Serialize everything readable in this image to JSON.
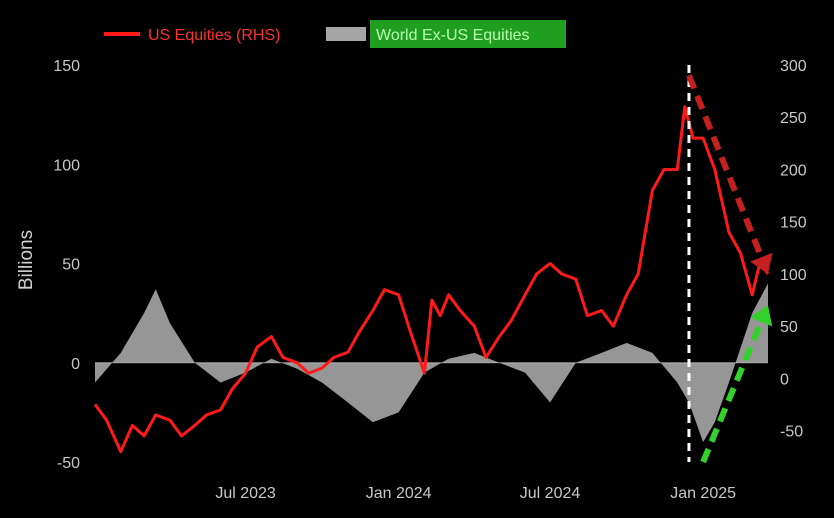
{
  "chart_data": {
    "type": "line",
    "title": "",
    "xlabel": "",
    "ylabel": "Billions",
    "x_ticks": [
      "Jul 2023",
      "Jan 2024",
      "Jul 2024",
      "Jan 2025"
    ],
    "x_range": [
      "2023-01-01",
      "2025-03-20"
    ],
    "y_left": {
      "ticks": [
        -50,
        0,
        50,
        100,
        150
      ],
      "range": [
        -50,
        150
      ]
    },
    "y_right": {
      "ticks": [
        -50,
        0,
        50,
        100,
        150,
        200,
        250,
        300
      ],
      "range": [
        -80,
        300
      ]
    },
    "grid": false,
    "legend_position": "top-left",
    "colors": {
      "background": "#000000",
      "us": "#ff1a1a",
      "world": "#a6a6a6",
      "world_label_bg": "#1f9e1f",
      "world_label_text": "#b6ffb0",
      "vline": "#ffffff",
      "red_arrow": "#c42020",
      "green_arrow": "#32d22a"
    },
    "series": [
      {
        "name": "US Equities (RHS)",
        "type": "line",
        "axis": "right",
        "points": [
          [
            "2023-01-01",
            -25
          ],
          [
            "2023-01-15",
            -40
          ],
          [
            "2023-02-01",
            -70
          ],
          [
            "2023-02-15",
            -45
          ],
          [
            "2023-03-01",
            -55
          ],
          [
            "2023-03-15",
            -35
          ],
          [
            "2023-04-01",
            -40
          ],
          [
            "2023-04-15",
            -55
          ],
          [
            "2023-05-01",
            -45
          ],
          [
            "2023-05-15",
            -35
          ],
          [
            "2023-06-01",
            -30
          ],
          [
            "2023-06-15",
            -10
          ],
          [
            "2023-07-01",
            5
          ],
          [
            "2023-07-15",
            30
          ],
          [
            "2023-08-01",
            40
          ],
          [
            "2023-08-15",
            20
          ],
          [
            "2023-09-01",
            15
          ],
          [
            "2023-09-15",
            5
          ],
          [
            "2023-10-01",
            10
          ],
          [
            "2023-10-15",
            20
          ],
          [
            "2023-11-01",
            25
          ],
          [
            "2023-11-15",
            45
          ],
          [
            "2023-12-01",
            65
          ],
          [
            "2023-12-15",
            85
          ],
          [
            "2024-01-01",
            80
          ],
          [
            "2024-01-15",
            45
          ],
          [
            "2024-02-01",
            5
          ],
          [
            "2024-02-10",
            75
          ],
          [
            "2024-02-20",
            60
          ],
          [
            "2024-03-01",
            80
          ],
          [
            "2024-03-15",
            65
          ],
          [
            "2024-04-01",
            50
          ],
          [
            "2024-04-15",
            20
          ],
          [
            "2024-05-01",
            40
          ],
          [
            "2024-05-15",
            55
          ],
          [
            "2024-06-01",
            80
          ],
          [
            "2024-06-15",
            100
          ],
          [
            "2024-07-01",
            110
          ],
          [
            "2024-07-15",
            100
          ],
          [
            "2024-08-01",
            95
          ],
          [
            "2024-08-15",
            60
          ],
          [
            "2024-09-01",
            65
          ],
          [
            "2024-09-15",
            50
          ],
          [
            "2024-10-01",
            80
          ],
          [
            "2024-10-15",
            100
          ],
          [
            "2024-11-01",
            180
          ],
          [
            "2024-11-15",
            200
          ],
          [
            "2024-12-01",
            200
          ],
          [
            "2024-12-10",
            260
          ],
          [
            "2024-12-20",
            230
          ],
          [
            "2025-01-01",
            230
          ],
          [
            "2025-01-15",
            200
          ],
          [
            "2025-02-01",
            140
          ],
          [
            "2025-02-15",
            120
          ],
          [
            "2025-03-01",
            80
          ],
          [
            "2025-03-10",
            110
          ],
          [
            "2025-03-20",
            100
          ]
        ]
      },
      {
        "name": "World Ex-US Equities",
        "type": "area",
        "axis": "left",
        "points": [
          [
            "2023-01-01",
            -10
          ],
          [
            "2023-02-01",
            5
          ],
          [
            "2023-03-01",
            25
          ],
          [
            "2023-03-15",
            37
          ],
          [
            "2023-04-01",
            20
          ],
          [
            "2023-05-01",
            0
          ],
          [
            "2023-06-01",
            -10
          ],
          [
            "2023-07-01",
            -5
          ],
          [
            "2023-08-01",
            2
          ],
          [
            "2023-09-01",
            -3
          ],
          [
            "2023-10-01",
            -10
          ],
          [
            "2023-11-01",
            -20
          ],
          [
            "2023-12-01",
            -30
          ],
          [
            "2024-01-01",
            -25
          ],
          [
            "2024-02-01",
            -5
          ],
          [
            "2024-03-01",
            2
          ],
          [
            "2024-04-01",
            5
          ],
          [
            "2024-05-01",
            0
          ],
          [
            "2024-06-01",
            -5
          ],
          [
            "2024-07-01",
            -20
          ],
          [
            "2024-08-01",
            0
          ],
          [
            "2024-09-01",
            5
          ],
          [
            "2024-10-01",
            10
          ],
          [
            "2024-11-01",
            5
          ],
          [
            "2024-12-01",
            -10
          ],
          [
            "2024-12-15",
            -20
          ],
          [
            "2025-01-01",
            -40
          ],
          [
            "2025-01-15",
            -30
          ],
          [
            "2025-02-01",
            -10
          ],
          [
            "2025-03-01",
            25
          ],
          [
            "2025-03-20",
            40
          ]
        ]
      }
    ],
    "annotations": [
      {
        "type": "vertical-dashed-line",
        "date": "2024-12-15"
      },
      {
        "type": "arrow-red",
        "from": [
          "2024-12-15",
          290
        ],
        "to": [
          "2025-03-20",
          100
        ]
      },
      {
        "type": "arrow-green",
        "from": [
          "2025-01-01",
          -80
        ],
        "to": [
          "2025-03-20",
          70
        ]
      }
    ]
  }
}
